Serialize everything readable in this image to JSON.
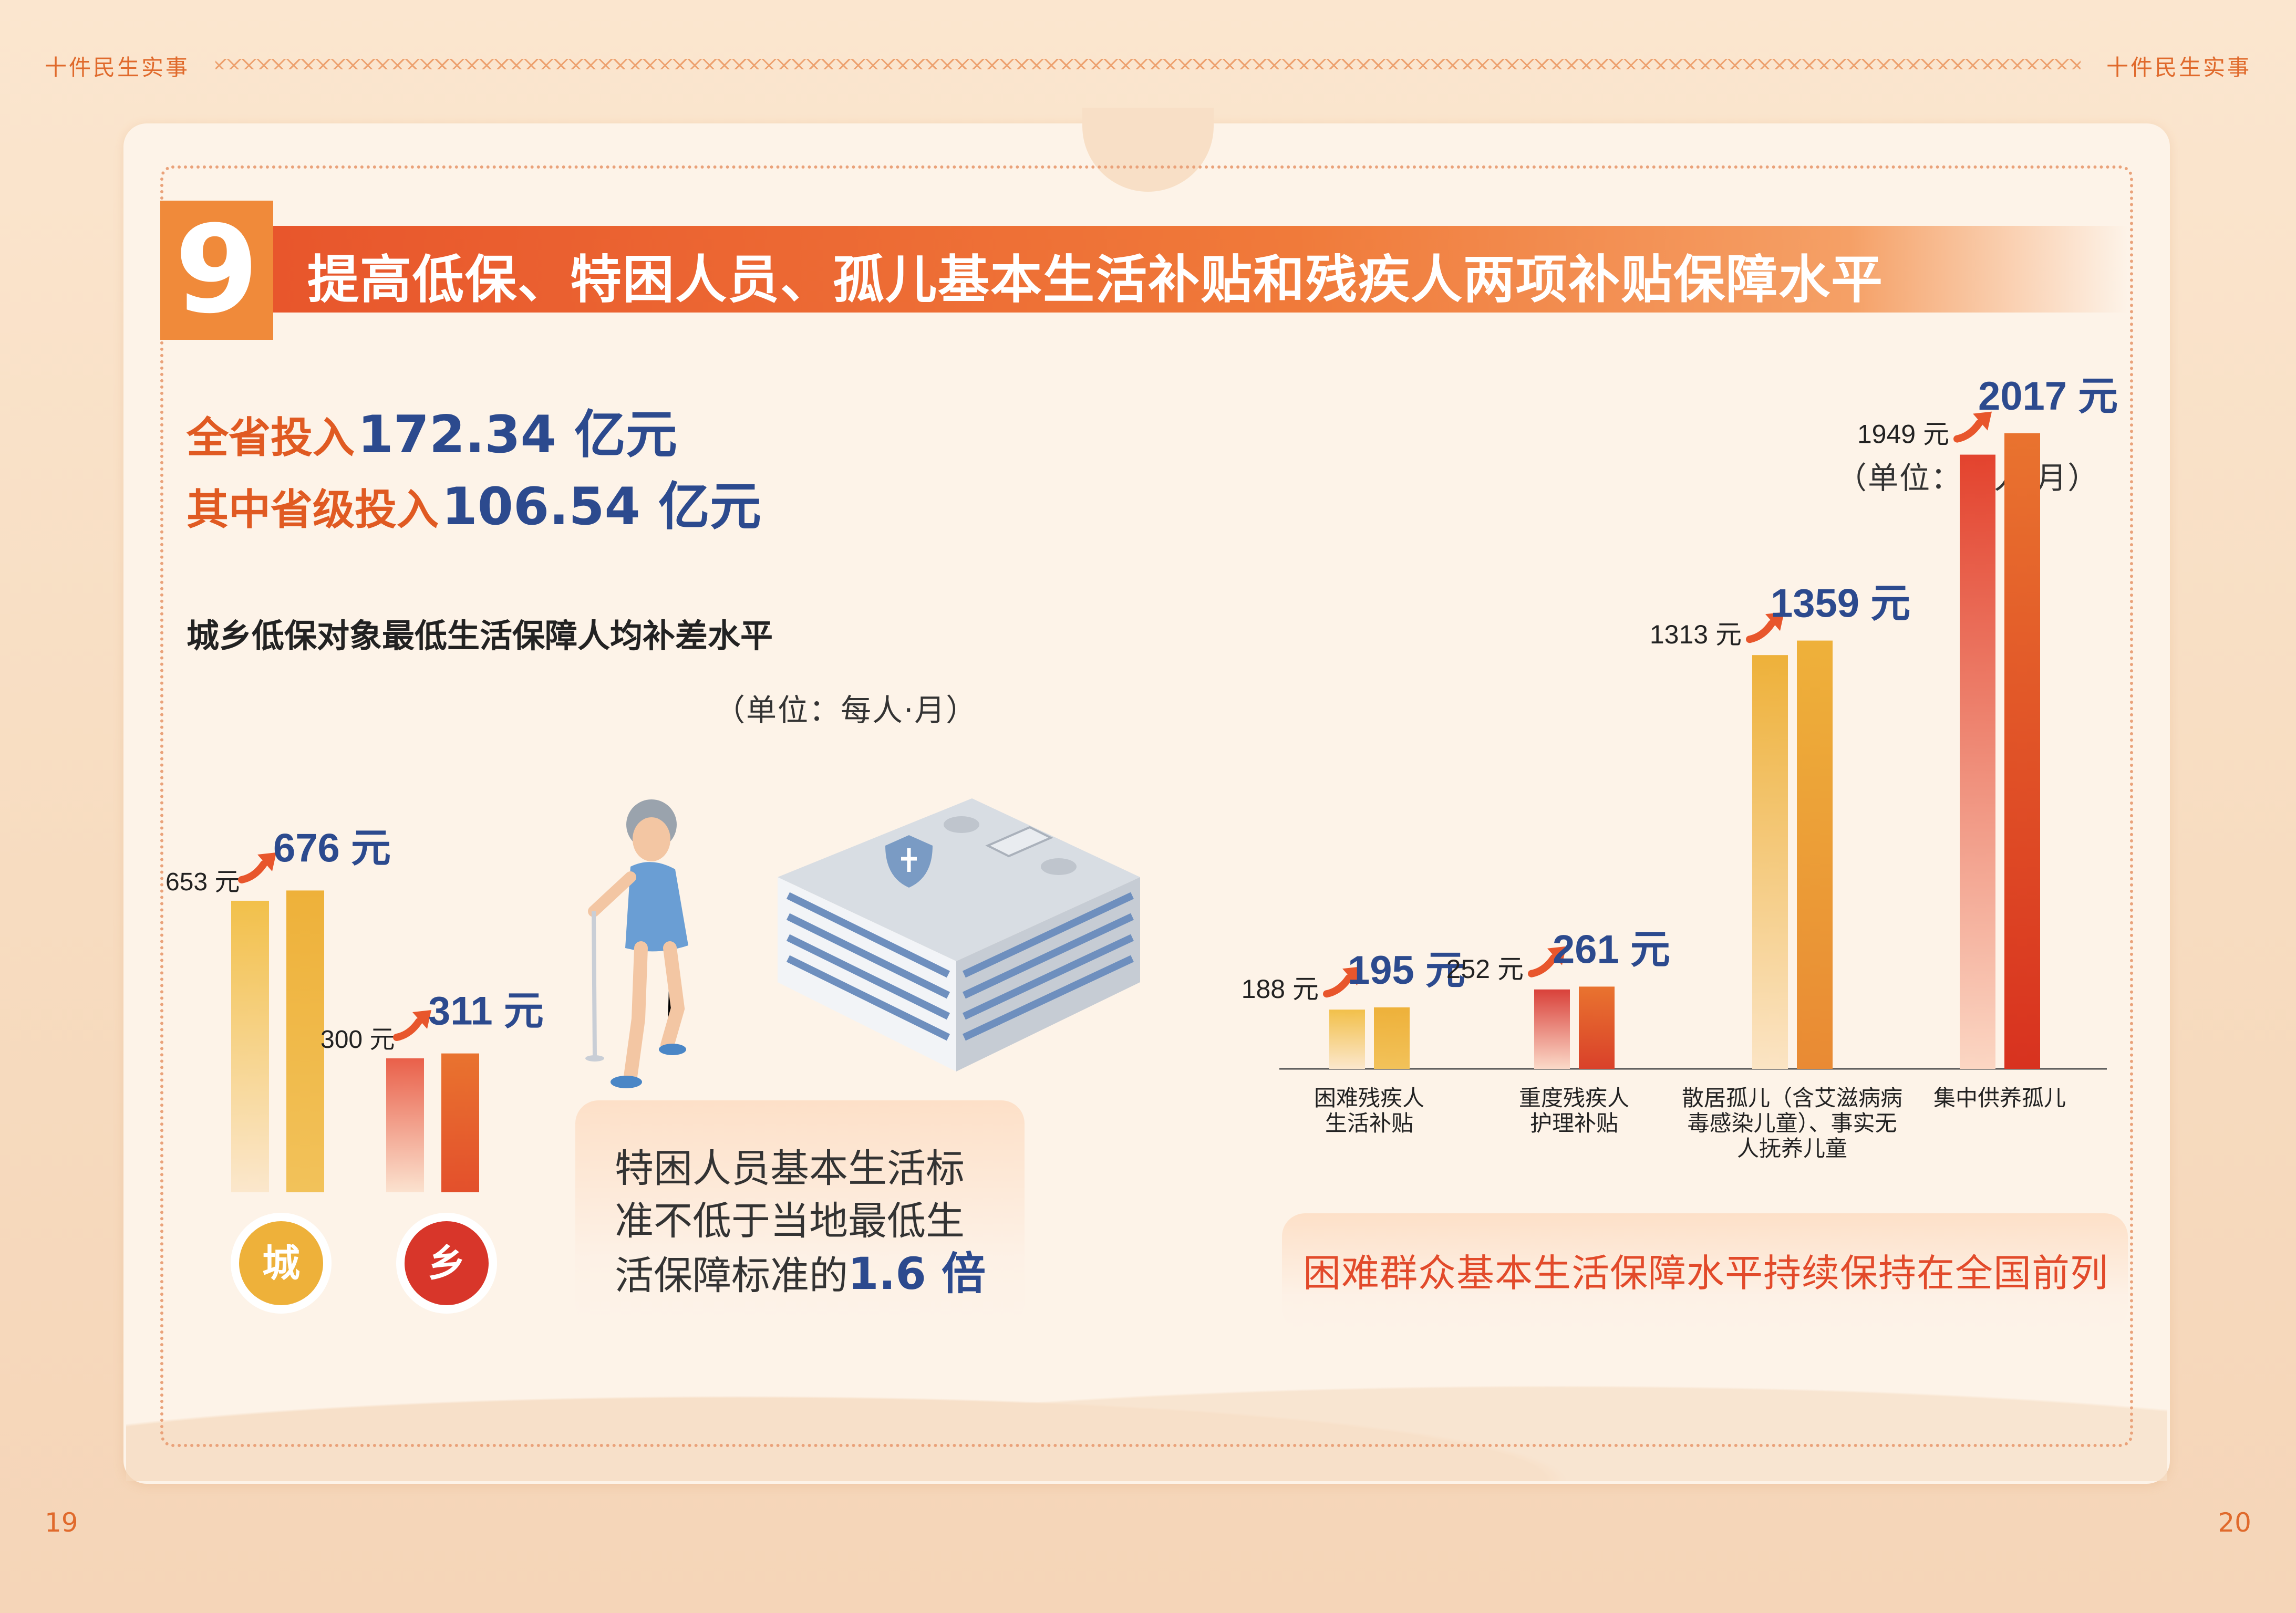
{
  "header": {
    "left": "十件民生实事",
    "right": "十件民生实事"
  },
  "pages": {
    "left": "19",
    "right": "20"
  },
  "section": {
    "number": "9",
    "title": "提高低保、特困人员、孤儿基本生活补贴和残疾人两项补贴保障水平"
  },
  "investment": {
    "total_label": "全省投入",
    "total_value": "172.34 亿元",
    "provincial_label": "其中省级投入",
    "provincial_value": "106.54 亿元"
  },
  "colors": {
    "accent": "#e8562c",
    "value_blue": "#2c4a8e",
    "bar_yellow": "#eeb13a",
    "bar_orange": "#e9732f",
    "bar_red": "#d83a22"
  },
  "chart_data": [
    {
      "type": "bar",
      "title": "城乡低保对象最低生活保障人均补差水平",
      "unit_note": "（单位：每人·月）",
      "categories": [
        "城",
        "乡"
      ],
      "series": [
        {
          "values": [
            653,
            300
          ]
        },
        {
          "values": [
            676,
            311
          ]
        }
      ],
      "old_labels": [
        "653 元",
        "300 元"
      ],
      "new_labels": [
        "676 元",
        "311 元"
      ],
      "badge_colors": [
        "#eeb13a",
        "#d8362a"
      ]
    },
    {
      "type": "bar",
      "unit_note": "（单位：每人·月）",
      "categories": [
        "困难残疾人生活补贴",
        "重度残疾人护理补贴",
        "散居孤儿（含艾滋病病毒感染儿童）、事实无人抚养儿童",
        "集中供养孤儿"
      ],
      "category_lines": [
        [
          "困难残疾人",
          "生活补贴"
        ],
        [
          "重度残疾人",
          "护理补贴"
        ],
        [
          "散居孤儿（含艾滋病病",
          "毒感染儿童）、事实无",
          "人抚养儿童"
        ],
        [
          "集中供养孤儿"
        ]
      ],
      "series": [
        {
          "values": [
            188,
            252,
            1313,
            1949
          ]
        },
        {
          "values": [
            195,
            261,
            1359,
            2017
          ]
        }
      ],
      "old_labels": [
        "188 元",
        "252 元",
        "1313 元",
        "1949 元"
      ],
      "new_labels": [
        "195 元",
        "261 元",
        "1359 元",
        "2017 元"
      ]
    }
  ],
  "callouts": {
    "tekun_text": "特困人员基本生活标准不低于当地最低生活保障标准的",
    "tekun_multiple": "1.6 倍",
    "tekun_lines": [
      "特困人员基本生活标",
      "准不低于当地最低生",
      "活保障标准的"
    ],
    "front": "困难群众基本生活保障水平持续保持在全国前列"
  },
  "icons": {
    "illustration": [
      "elderly-woman-with-cane-icon",
      "care-building-shield-icon"
    ],
    "arrow": "rising-arrow-icon"
  }
}
